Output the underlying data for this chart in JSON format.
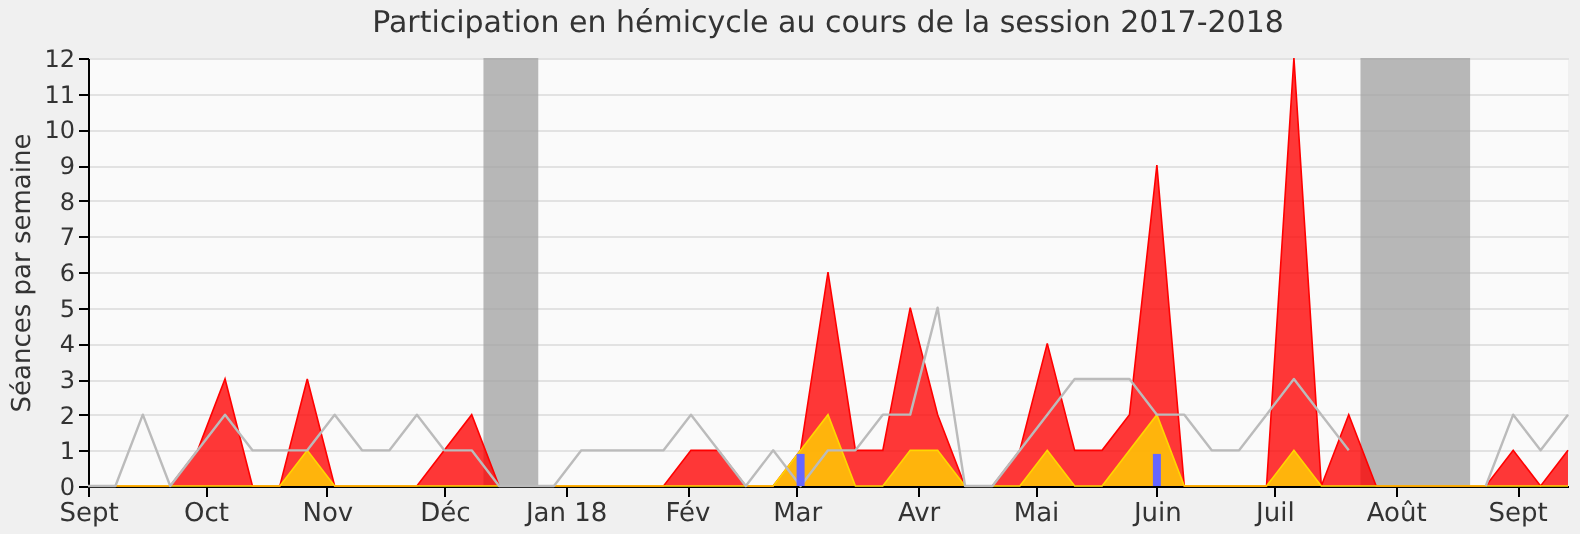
{
  "chart_data": {
    "type": "area",
    "title": "Participation en hémicycle au cours de la session 2017-2018",
    "ylabel": "Séances par semaine",
    "x": [
      "2017-09-01",
      "2017-09-08",
      "2017-09-15",
      "2017-09-22",
      "2017-09-29",
      "2017-10-06",
      "2017-10-13",
      "2017-10-20",
      "2017-10-27",
      "2017-11-03",
      "2017-11-10",
      "2017-11-17",
      "2017-11-24",
      "2017-12-01",
      "2017-12-08",
      "2017-12-15",
      "2017-12-22",
      "2017-12-29",
      "2018-01-05",
      "2018-01-12",
      "2018-01-19",
      "2018-01-26",
      "2018-02-02",
      "2018-02-09",
      "2018-02-16",
      "2018-02-23",
      "2018-03-02",
      "2018-03-09",
      "2018-03-16",
      "2018-03-23",
      "2018-03-30",
      "2018-04-06",
      "2018-04-13",
      "2018-04-20",
      "2018-04-27",
      "2018-05-04",
      "2018-05-11",
      "2018-05-18",
      "2018-05-25",
      "2018-06-01",
      "2018-06-08",
      "2018-06-15",
      "2018-06-22",
      "2018-06-29",
      "2018-07-06",
      "2018-07-13",
      "2018-07-20",
      "2018-07-27",
      "2018-08-03",
      "2018-08-10",
      "2018-08-17",
      "2018-08-24",
      "2018-08-31",
      "2018-09-07",
      "2018-09-14"
    ],
    "series": [
      {
        "color": "#ff0000",
        "values": [
          0,
          0,
          0,
          0,
          1,
          3,
          0,
          0,
          3,
          0,
          0,
          0,
          0,
          1,
          2,
          0,
          0,
          0,
          0,
          0,
          0,
          0,
          1,
          1,
          0,
          0,
          1,
          6,
          1,
          1,
          5,
          2,
          0,
          0,
          1,
          4,
          1,
          1,
          2,
          9,
          0,
          0,
          0,
          0,
          12,
          0,
          2,
          0,
          0,
          0,
          0,
          0,
          1,
          0,
          1
        ]
      },
      {
        "color": "#ffd700",
        "values": [
          0,
          0,
          0,
          0,
          0,
          0,
          0,
          0,
          1,
          0,
          0,
          0,
          0,
          0,
          0,
          0,
          0,
          0,
          0,
          0,
          0,
          0,
          0,
          0,
          0,
          0,
          1,
          2,
          0,
          0,
          1,
          1,
          0,
          0,
          0,
          1,
          0,
          0,
          1,
          2,
          0,
          0,
          0,
          0,
          1,
          0,
          0,
          0,
          0,
          0,
          0,
          0,
          0,
          0,
          0
        ]
      },
      {
        "type": "line",
        "color": "#bbbbbb",
        "values": [
          0,
          0,
          2,
          0,
          1,
          2,
          1,
          1,
          1,
          2,
          1,
          1,
          2,
          1,
          1,
          0,
          0,
          0,
          1,
          1,
          1,
          1,
          2,
          1,
          0,
          1,
          0,
          1,
          1,
          2,
          2,
          5,
          0,
          0,
          1,
          2,
          3,
          3,
          3,
          2,
          2,
          1,
          1,
          2,
          3,
          2,
          1,
          null,
          null,
          null,
          null,
          0,
          2,
          1,
          2
        ]
      },
      {
        "type": "bar",
        "color": "#6666ff",
        "values": [
          null,
          null,
          null,
          null,
          null,
          null,
          null,
          null,
          null,
          null,
          null,
          null,
          null,
          null,
          null,
          null,
          null,
          null,
          null,
          null,
          null,
          null,
          null,
          null,
          null,
          null,
          0.9,
          null,
          null,
          null,
          null,
          null,
          null,
          null,
          null,
          null,
          null,
          null,
          null,
          0.9,
          null,
          null,
          null,
          null,
          null,
          null,
          null,
          null,
          null,
          null,
          null,
          null,
          null,
          null,
          null
        ]
      }
    ],
    "xlim": [
      "2017-09-01",
      "2018-09-14"
    ],
    "xticks": [
      {
        "value": "2017-09-01",
        "label": "Sept"
      },
      {
        "value": "2017-10-01",
        "label": "Oct"
      },
      {
        "value": "2017-11-01",
        "label": "Nov"
      },
      {
        "value": "2017-12-01",
        "label": "Déc"
      },
      {
        "value": "2018-01-01",
        "label": "Jan 18"
      },
      {
        "value": "2018-02-01",
        "label": "Fév"
      },
      {
        "value": "2018-03-01",
        "label": "Mar"
      },
      {
        "value": "2018-04-01",
        "label": "Avr"
      },
      {
        "value": "2018-05-01",
        "label": "Mai"
      },
      {
        "value": "2018-06-01",
        "label": "Juin"
      },
      {
        "value": "2018-07-01",
        "label": "Juil"
      },
      {
        "value": "2018-08-01",
        "label": "Août"
      },
      {
        "value": "2018-09-01",
        "label": "Sept"
      }
    ],
    "ylim": [
      0,
      12
    ],
    "yticks": [
      0,
      1,
      2,
      3,
      4,
      5,
      6,
      7,
      8,
      9,
      10,
      11,
      12
    ],
    "bands": [
      {
        "axis": "x",
        "from": "2017-12-11",
        "to": "2017-12-25",
        "color": "#a0a0a0"
      },
      {
        "axis": "x",
        "from": "2018-07-23",
        "to": "2018-08-20",
        "color": "#a0a0a0"
      }
    ],
    "grid": "y"
  }
}
